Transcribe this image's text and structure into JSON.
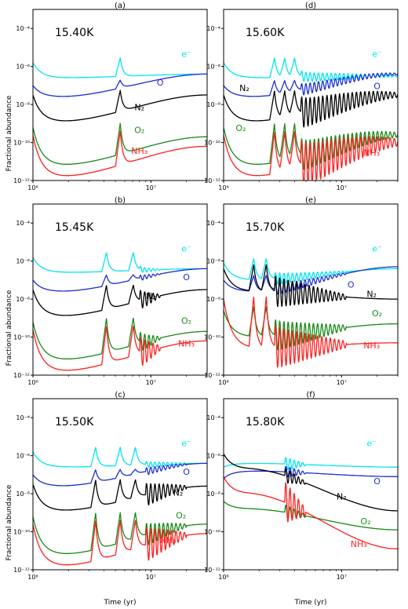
{
  "figure": {
    "ylabel": "Fractional abundance",
    "xlabel": "Time (yr)"
  },
  "colors": {
    "e": "#00e5ee",
    "O": "#1f2fd0",
    "N2": "#000000",
    "O2": "#1a8a1a",
    "NH3": "#ff2020"
  },
  "chart_data": [
    {
      "type": "line",
      "panel_label": "(a)",
      "temperature": "15.40K",
      "xscale": "log",
      "yscale": "log",
      "xlim": [
        1000000,
        30000000
      ],
      "ylim": [
        1e-12,
        0.001
      ],
      "x_ticks": [
        1000000,
        10000000
      ],
      "y_ticks": [
        1e-12,
        1e-10,
        1e-08,
        1e-06,
        0.0001
      ],
      "spikes": [
        5500000
      ],
      "osc": null,
      "series": [
        {
          "name": "e⁻",
          "key": "e",
          "base": -5.8,
          "dip": -6.6,
          "end": -6.4,
          "osc_amp": 0.1,
          "label_x": 20000000,
          "label_y": -5.5
        },
        {
          "name": "O",
          "key": "O",
          "base": -7.0,
          "dip": -7.6,
          "end": -6.4,
          "osc_amp": 0.1,
          "label_x": 12000000,
          "label_y": -7.0
        },
        {
          "name": "N₂",
          "key": "N2",
          "base": -7.5,
          "dip": -8.9,
          "end": -7.5,
          "osc_amp": 0.5,
          "label_x": 8000000,
          "label_y": -8.3
        },
        {
          "name": "O₂",
          "key": "O2",
          "base": -9.2,
          "dip": -11.2,
          "end": -9.7,
          "osc_amp": 0.5,
          "label_x": 8000000,
          "label_y": -9.5
        },
        {
          "name": "NH₃",
          "key": "NH3",
          "base": -9.6,
          "dip": -11.8,
          "end": -10.2,
          "osc_amp": 0.8,
          "label_x": 8000000,
          "label_y": -10.6
        }
      ]
    },
    {
      "type": "line",
      "panel_label": "(d)",
      "temperature": "15.60K",
      "xscale": "log",
      "yscale": "log",
      "xlim": [
        1000000,
        30000000
      ],
      "ylim": [
        1e-12,
        0.001
      ],
      "x_ticks": [
        1000000,
        10000000
      ],
      "y_ticks": [
        1e-12,
        1e-10,
        1e-08,
        1e-06,
        0.0001
      ],
      "spikes": [
        2700000,
        3300000,
        4000000
      ],
      "osc": [
        4500000,
        30000000
      ],
      "series": [
        {
          "name": "e⁻",
          "key": "e",
          "base": -5.8,
          "dip": -6.6,
          "end": -6.5,
          "osc_amp": 0.25,
          "label_x": 20000000,
          "label_y": -5.5
        },
        {
          "name": "O",
          "key": "O",
          "base": -7.0,
          "dip": -7.6,
          "end": -6.4,
          "osc_amp": 0.3,
          "label_x": 20000000,
          "label_y": -7.2
        },
        {
          "name": "N₂",
          "key": "N2",
          "base": -7.5,
          "dip": -8.9,
          "end": -7.5,
          "osc_amp": 0.8,
          "label_x": 1500000,
          "label_y": -7.3
        },
        {
          "name": "O₂",
          "key": "O2",
          "base": -9.2,
          "dip": -11.2,
          "end": -9.6,
          "osc_amp": 0.8,
          "label_x": 1400000,
          "label_y": -9.4
        },
        {
          "name": "NH₃",
          "key": "NH3",
          "base": -9.6,
          "dip": -11.8,
          "end": -10.0,
          "osc_amp": 1.2,
          "label_x": 18000000,
          "label_y": -10.7
        }
      ]
    },
    {
      "type": "line",
      "panel_label": "(b)",
      "temperature": "15.45K",
      "xscale": "log",
      "yscale": "log",
      "xlim": [
        1000000,
        30000000
      ],
      "ylim": [
        1e-12,
        0.001
      ],
      "x_ticks": [
        1000000,
        10000000
      ],
      "y_ticks": [
        1e-12,
        1e-10,
        1e-08,
        1e-06,
        0.0001
      ],
      "spikes": [
        4200000,
        7100000
      ],
      "osc": [
        8000000,
        12000000
      ],
      "series": [
        {
          "name": "e⁻",
          "key": "e",
          "base": -5.8,
          "dip": -6.6,
          "end": -6.4,
          "osc_amp": 0.15,
          "label_x": 20000000,
          "label_y": -5.5
        },
        {
          "name": "O",
          "key": "O",
          "base": -7.0,
          "dip": -7.6,
          "end": -6.4,
          "osc_amp": 0.15,
          "label_x": 20000000,
          "label_y": -7.0
        },
        {
          "name": "N₂",
          "key": "N2",
          "base": -7.5,
          "dip": -8.9,
          "end": -7.5,
          "osc_amp": 0.5,
          "label_x": 10000000,
          "label_y": -8.0
        },
        {
          "name": "O₂",
          "key": "O2",
          "base": -9.2,
          "dip": -11.2,
          "end": -9.7,
          "osc_amp": 0.5,
          "label_x": 20000000,
          "label_y": -9.3
        },
        {
          "name": "NH₃",
          "key": "NH3",
          "base": -9.6,
          "dip": -11.8,
          "end": -10.2,
          "osc_amp": 0.8,
          "label_x": 20000000,
          "label_y": -10.5
        }
      ]
    },
    {
      "type": "line",
      "panel_label": "(e)",
      "temperature": "15.70K",
      "xscale": "log",
      "yscale": "log",
      "xlim": [
        1000000,
        30000000
      ],
      "ylim": [
        1e-12,
        0.001
      ],
      "x_ticks": [
        1000000,
        10000000
      ],
      "y_ticks": [
        1e-12,
        1e-10,
        1e-08,
        1e-06,
        0.0001
      ],
      "spikes": [
        1800000,
        2300000
      ],
      "osc": [
        2700000,
        11000000
      ],
      "series": [
        {
          "name": "e⁻",
          "key": "e",
          "base": -6.1,
          "dip": -7.0,
          "end": -6.4,
          "osc_amp": 0.3,
          "label_x": 20000000,
          "label_y": -5.5
        },
        {
          "name": "O",
          "key": "O",
          "base": -7.0,
          "dip": -7.6,
          "end": -6.3,
          "osc_amp": 0.3,
          "label_x": 12000000,
          "label_y": -7.4
        },
        {
          "name": "N₂",
          "key": "N2",
          "base": -6.4,
          "dip": -7.6,
          "end": -8.0,
          "osc_amp": 0.8,
          "label_x": 18000000,
          "label_y": -7.9
        },
        {
          "name": "O₂",
          "key": "O2",
          "base": -8.6,
          "dip": -10.0,
          "end": -9.3,
          "osc_amp": 0.8,
          "label_x": 20000000,
          "label_y": -8.9
        },
        {
          "name": "NH₃",
          "key": "NH3",
          "base": -8.0,
          "dip": -10.6,
          "end": -10.3,
          "osc_amp": 1.1,
          "label_x": 18000000,
          "label_y": -10.6
        }
      ]
    },
    {
      "type": "line",
      "panel_label": "(c)",
      "temperature": "15.50K",
      "xscale": "log",
      "yscale": "log",
      "xlim": [
        1000000,
        30000000
      ],
      "ylim": [
        1e-12,
        0.001
      ],
      "x_ticks": [
        1000000,
        10000000
      ],
      "y_ticks": [
        1e-12,
        1e-10,
        1e-08,
        1e-06,
        0.0001
      ],
      "spikes": [
        3400000,
        5500000,
        7400000
      ],
      "osc": [
        9000000,
        20000000
      ],
      "series": [
        {
          "name": "e⁻",
          "key": "e",
          "base": -5.8,
          "dip": -6.6,
          "end": -6.4,
          "osc_amp": 0.15,
          "label_x": 20000000,
          "label_y": -5.5
        },
        {
          "name": "O",
          "key": "O",
          "base": -7.0,
          "dip": -7.6,
          "end": -6.4,
          "osc_amp": 0.2,
          "label_x": 20000000,
          "label_y": -7.0
        },
        {
          "name": "N₂",
          "key": "N2",
          "base": -7.5,
          "dip": -8.9,
          "end": -7.6,
          "osc_amp": 0.6,
          "label_x": 17000000,
          "label_y": -8.1
        },
        {
          "name": "O₂",
          "key": "O2",
          "base": -9.2,
          "dip": -11.2,
          "end": -9.6,
          "osc_amp": 0.6,
          "label_x": 18000000,
          "label_y": -9.3
        },
        {
          "name": "NH₃",
          "key": "NH3",
          "base": -9.6,
          "dip": -11.8,
          "end": -10.1,
          "osc_amp": 0.9,
          "label_x": 14000000,
          "label_y": -10.6
        }
      ]
    },
    {
      "type": "line",
      "panel_label": "(f)",
      "temperature": "15.80K",
      "xscale": "log",
      "yscale": "log",
      "xlim": [
        1000000,
        30000000
      ],
      "ylim": [
        1e-12,
        0.001
      ],
      "x_ticks": [
        1000000,
        10000000
      ],
      "y_ticks": [
        1e-12,
        1e-10,
        1e-08,
        1e-06,
        0.0001
      ],
      "spikes": [],
      "osc": [
        3300000,
        5000000
      ],
      "series": [
        {
          "name": "e⁻",
          "key": "e",
          "base": -6.6,
          "dip": -6.4,
          "end": -6.6,
          "osc_amp": 0.35,
          "label_x": 18000000,
          "label_y": -5.5
        },
        {
          "name": "O",
          "key": "O",
          "base": -7.2,
          "dip": -6.8,
          "end": -7.1,
          "osc_amp": 0.3,
          "label_x": 20000000,
          "label_y": -7.5
        },
        {
          "name": "N₂",
          "key": "N2",
          "base": -5.9,
          "dip": -6.7,
          "end": -8.9,
          "osc_amp": 0.4,
          "label_x": 10000000,
          "label_y": -8.3
        },
        {
          "name": "O₂",
          "key": "O2",
          "base": -8.4,
          "dip": -8.8,
          "end": -9.9,
          "osc_amp": 0.4,
          "label_x": 16000000,
          "label_y": -9.6
        },
        {
          "name": "NH₃",
          "key": "NH3",
          "base": -7.1,
          "dip": -8.0,
          "end": -10.9,
          "osc_amp": 1.1,
          "label_x": 14000000,
          "label_y": -10.8
        }
      ]
    }
  ]
}
